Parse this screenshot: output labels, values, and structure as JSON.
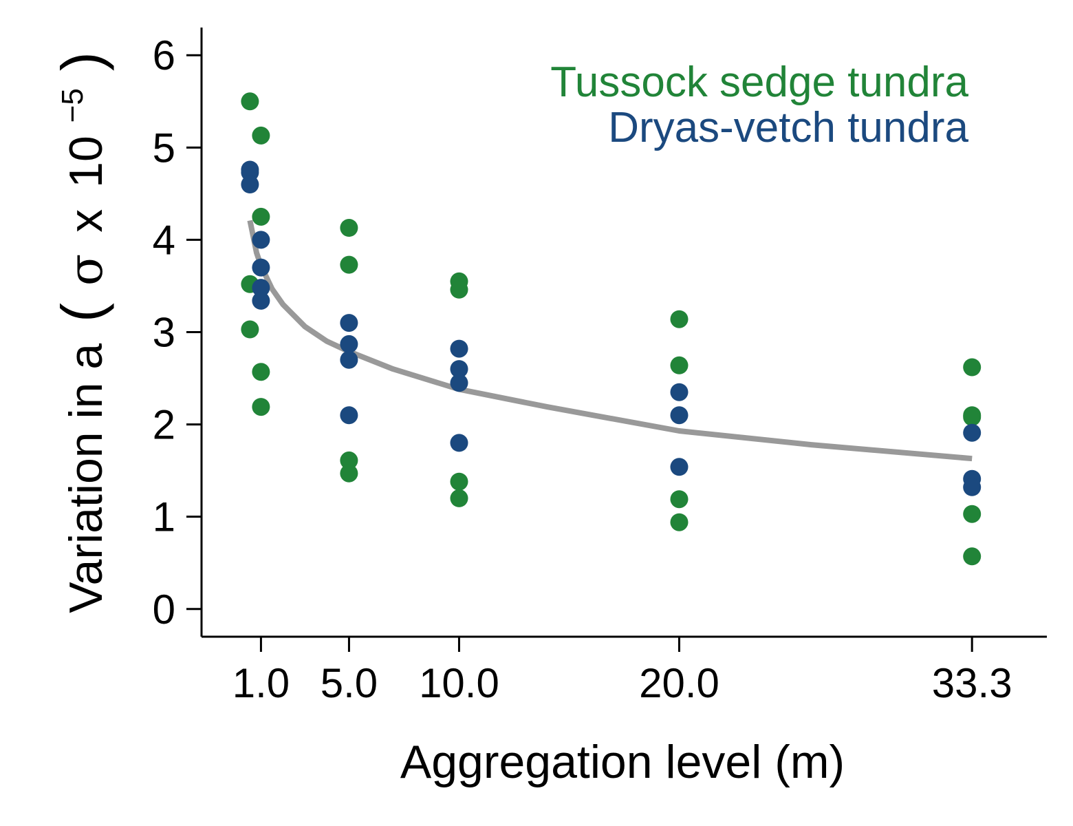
{
  "chart_data": {
    "type": "scatter",
    "xlabel": "Aggregation level (m)",
    "ylabel": {
      "prefix": "Variation in a",
      "paren_open": "(",
      "sigma": "σ",
      "times": "x",
      "base": "10",
      "exponent": "−5",
      "paren_close": ")"
    },
    "x_ticks": [
      1.0,
      5.0,
      10.0,
      20.0,
      33.3
    ],
    "x_tick_labels": [
      "1.0",
      "5.0",
      "10.0",
      "20.0",
      "33.3"
    ],
    "y_ticks": [
      0,
      1,
      2,
      3,
      4,
      5,
      6
    ],
    "y_tick_labels": [
      "0",
      "1",
      "2",
      "3",
      "4",
      "5",
      "6"
    ],
    "xlim": [
      -1.7,
      36.7
    ],
    "ylim": [
      -0.3,
      6.3
    ],
    "grid": false,
    "legend_position": "top-right",
    "series": [
      {
        "name": "Tussock sedge tundra",
        "color": "#218438",
        "points": [
          [
            0.5,
            5.5
          ],
          [
            1.0,
            5.13
          ],
          [
            1.0,
            4.25
          ],
          [
            0.5,
            3.52
          ],
          [
            0.5,
            3.03
          ],
          [
            1.0,
            2.57
          ],
          [
            1.0,
            2.19
          ],
          [
            5.0,
            4.13
          ],
          [
            5.0,
            3.73
          ],
          [
            5.0,
            1.61
          ],
          [
            5.0,
            1.47
          ],
          [
            10.0,
            3.55
          ],
          [
            10.0,
            3.46
          ],
          [
            10.0,
            1.38
          ],
          [
            10.0,
            1.2
          ],
          [
            20.0,
            3.14
          ],
          [
            20.0,
            2.64
          ],
          [
            20.0,
            1.19
          ],
          [
            20.0,
            0.94
          ],
          [
            33.3,
            2.62
          ],
          [
            33.3,
            2.1
          ],
          [
            33.3,
            2.08
          ],
          [
            33.3,
            1.03
          ],
          [
            33.3,
            0.57
          ]
        ]
      },
      {
        "name": "Dryas-vetch tundra",
        "color": "#1b497f",
        "points": [
          [
            0.5,
            4.76
          ],
          [
            0.5,
            4.73
          ],
          [
            0.5,
            4.6
          ],
          [
            1.0,
            4.0
          ],
          [
            1.0,
            3.7
          ],
          [
            1.0,
            3.48
          ],
          [
            1.0,
            3.34
          ],
          [
            5.0,
            3.1
          ],
          [
            5.0,
            2.87
          ],
          [
            5.0,
            2.7
          ],
          [
            5.0,
            2.1
          ],
          [
            10.0,
            2.82
          ],
          [
            10.0,
            2.6
          ],
          [
            10.0,
            2.45
          ],
          [
            10.0,
            1.8
          ],
          [
            20.0,
            2.35
          ],
          [
            20.0,
            2.1
          ],
          [
            20.0,
            1.54
          ],
          [
            33.3,
            1.91
          ],
          [
            33.3,
            1.41
          ],
          [
            33.3,
            1.32
          ]
        ]
      }
    ],
    "fit_line": {
      "color": "#999999",
      "x": [
        0.5,
        0.8,
        1.0,
        1.5,
        2,
        3,
        4,
        5,
        7,
        10,
        14,
        20,
        26,
        33.3
      ],
      "y": [
        4.21,
        3.86,
        3.72,
        3.47,
        3.3,
        3.06,
        2.9,
        2.79,
        2.6,
        2.38,
        2.19,
        1.93,
        1.78,
        1.63
      ]
    }
  }
}
